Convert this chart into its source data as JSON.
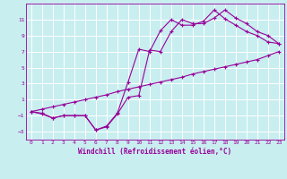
{
  "xlabel": "Windchill (Refroidissement éolien,°C)",
  "bg_color": "#c8eef0",
  "grid_color": "#ffffff",
  "line_color": "#990099",
  "xlim": [
    -0.5,
    23.5
  ],
  "ylim": [
    -4,
    13
  ],
  "xticks": [
    0,
    1,
    2,
    3,
    4,
    5,
    6,
    7,
    8,
    9,
    10,
    11,
    12,
    13,
    14,
    15,
    16,
    17,
    18,
    19,
    20,
    21,
    22,
    23
  ],
  "yticks": [
    -3,
    -1,
    1,
    3,
    5,
    7,
    9,
    11
  ],
  "line_a_x": [
    0,
    1,
    2,
    3,
    4,
    5,
    6,
    7,
    8,
    9,
    10,
    11,
    12,
    13,
    14,
    15,
    16,
    17,
    18,
    19,
    20,
    21,
    22,
    23
  ],
  "line_a_y": [
    -0.5,
    -0.7,
    -1.3,
    -1.0,
    -1.0,
    -1.0,
    -2.8,
    -2.3,
    -0.7,
    3.2,
    7.3,
    7.0,
    9.6,
    11.0,
    10.3,
    10.3,
    10.8,
    12.2,
    11.1,
    10.3,
    9.5,
    9.0,
    8.2,
    8.0
  ],
  "line_b_x": [
    0,
    1,
    2,
    3,
    4,
    5,
    6,
    7,
    8,
    9,
    10,
    11,
    12,
    13,
    14,
    15,
    16,
    17,
    18,
    19,
    20,
    21,
    22,
    23
  ],
  "line_b_y": [
    -0.5,
    -0.8,
    -1.3,
    -1.0,
    -1.0,
    -1.0,
    -2.8,
    -2.4,
    -0.8,
    1.3,
    1.5,
    7.2,
    7.0,
    9.5,
    11.0,
    10.5,
    10.5,
    11.2,
    12.2,
    11.2,
    10.5,
    9.5,
    9.0,
    8.0
  ],
  "line_c_x": [
    0,
    1,
    2,
    3,
    4,
    5,
    6,
    7,
    8,
    9,
    10,
    11,
    12,
    13,
    14,
    15,
    16,
    17,
    18,
    19,
    20,
    21,
    22,
    23
  ],
  "line_c_y": [
    -0.5,
    -0.2,
    0.1,
    0.4,
    0.7,
    1.0,
    1.3,
    1.6,
    2.0,
    2.3,
    2.6,
    2.9,
    3.2,
    3.5,
    3.8,
    4.2,
    4.5,
    4.8,
    5.1,
    5.4,
    5.7,
    6.0,
    6.5,
    7.0
  ],
  "line_width": 0.8,
  "marker_size": 2.5,
  "tick_fontsize": 4.5,
  "xlabel_fontsize": 5.5
}
